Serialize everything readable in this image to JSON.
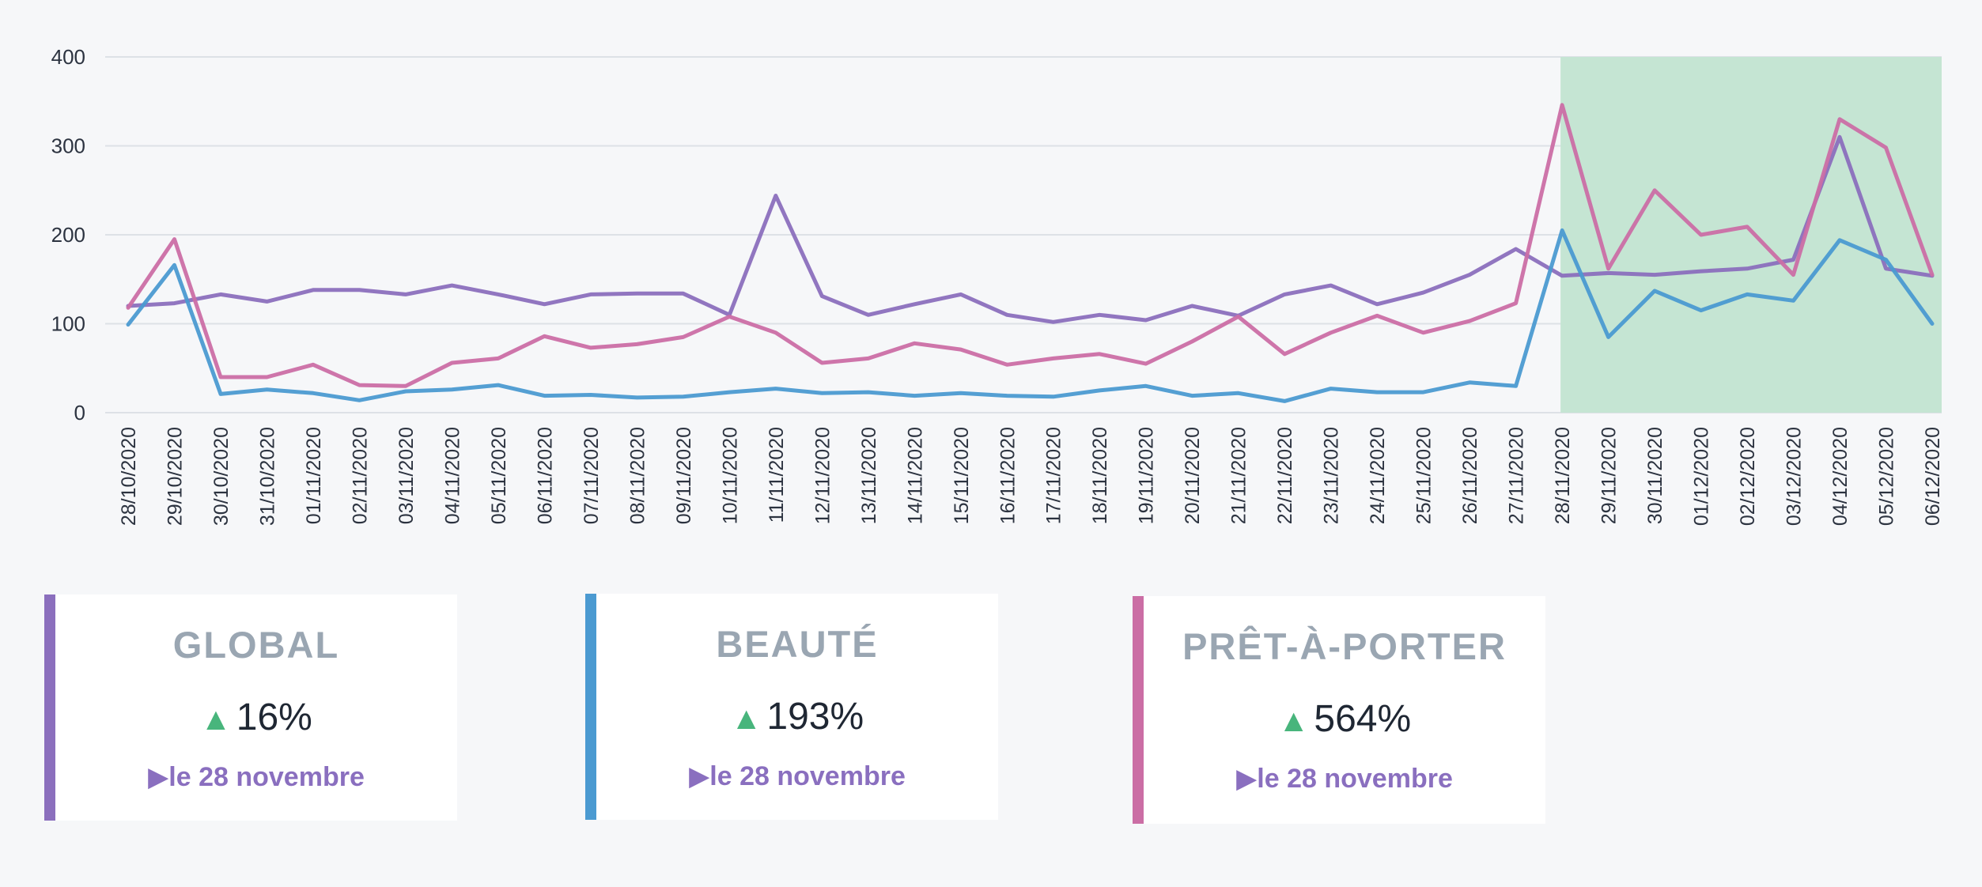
{
  "chart_data": {
    "type": "line",
    "ylim": [
      0,
      400
    ],
    "yticks": [
      0,
      100,
      200,
      300,
      400
    ],
    "highlight_range": {
      "from": "28/11/2020",
      "to": "06/12/2020",
      "color": "#c5e5d3"
    },
    "categories": [
      "28/10/2020",
      "29/10/2020",
      "30/10/2020",
      "31/10/2020",
      "01/11/2020",
      "02/11/2020",
      "03/11/2020",
      "04/11/2020",
      "05/11/2020",
      "06/11/2020",
      "07/11/2020",
      "08/11/2020",
      "09/11/2020",
      "10/11/2020",
      "11/11/2020",
      "12/11/2020",
      "13/11/2020",
      "14/11/2020",
      "15/11/2020",
      "16/11/2020",
      "17/11/2020",
      "18/11/2020",
      "19/11/2020",
      "20/11/2020",
      "21/11/2020",
      "22/11/2020",
      "23/11/2020",
      "24/11/2020",
      "25/11/2020",
      "26/11/2020",
      "27/11/2020",
      "28/11/2020",
      "29/11/2020",
      "30/11/2020",
      "01/12/2020",
      "02/12/2020",
      "03/12/2020",
      "04/12/2020",
      "05/12/2020",
      "06/12/2020"
    ],
    "series": [
      {
        "name": "GLOBAL",
        "color": "#8b6fbd",
        "values": [
          120,
          123,
          133,
          125,
          138,
          138,
          133,
          143,
          133,
          122,
          133,
          134,
          134,
          110,
          244,
          131,
          110,
          122,
          133,
          110,
          102,
          110,
          104,
          120,
          109,
          133,
          143,
          122,
          135,
          155,
          184,
          154,
          157,
          155,
          159,
          162,
          172,
          310,
          162,
          154
        ]
      },
      {
        "name": "BEAUTÉ",
        "color": "#4b9ad1",
        "values": [
          99,
          166,
          21,
          26,
          22,
          14,
          24,
          26,
          31,
          19,
          20,
          17,
          18,
          23,
          27,
          22,
          23,
          19,
          22,
          19,
          18,
          25,
          30,
          19,
          22,
          13,
          27,
          23,
          23,
          34,
          30,
          205,
          85,
          137,
          115,
          133,
          126,
          194,
          172,
          100
        ]
      },
      {
        "name": "PRÊT-À-PORTER",
        "color": "#cb6ea5",
        "values": [
          118,
          195,
          40,
          40,
          54,
          31,
          30,
          56,
          61,
          86,
          73,
          77,
          85,
          108,
          90,
          56,
          61,
          78,
          71,
          54,
          61,
          66,
          55,
          80,
          108,
          66,
          90,
          109,
          90,
          103,
          123,
          346,
          162,
          250,
          200,
          209,
          155,
          330,
          298,
          155
        ]
      }
    ]
  },
  "cards": [
    {
      "title": "GLOBAL",
      "arrow": "▲",
      "value": "16%",
      "note": "▶le 28 novembre",
      "color": "#8b6fbd"
    },
    {
      "title": "BEAUTÉ",
      "arrow": "▲",
      "value": "193%",
      "note": "▶le 28 novembre",
      "color": "#4b9ad1"
    },
    {
      "title": "PRÊT-À-PORTER",
      "arrow": "▲",
      "value": "564%",
      "note": "▶le 28 novembre",
      "color": "#cb6ea5"
    }
  ]
}
